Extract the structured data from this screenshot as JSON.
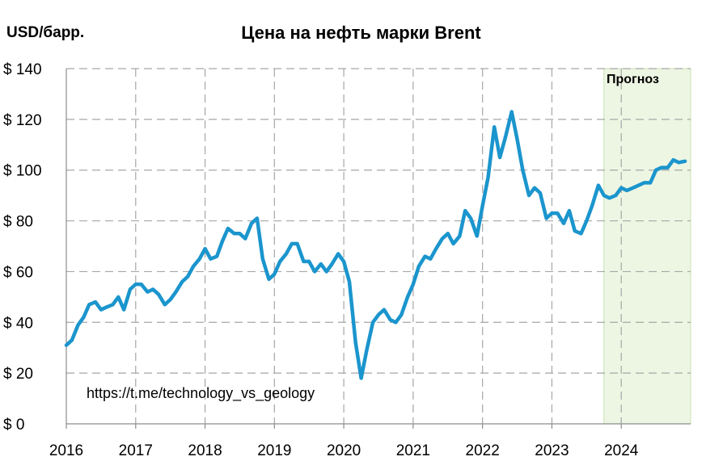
{
  "chart_data": {
    "type": "line",
    "title": "Цена на нефть марки Brent",
    "ylabel": "USD/барр.",
    "xlabel": "",
    "ylim": [
      0,
      140
    ],
    "xlim": [
      2016,
      2025
    ],
    "yticks": [
      {
        "value": 0,
        "label": "$ 0"
      },
      {
        "value": 20,
        "label": "$ 20"
      },
      {
        "value": 40,
        "label": "$ 40"
      },
      {
        "value": 60,
        "label": "$ 60"
      },
      {
        "value": 80,
        "label": "$ 80"
      },
      {
        "value": 100,
        "label": "$ 100"
      },
      {
        "value": 120,
        "label": "$ 120"
      },
      {
        "value": 140,
        "label": "$ 140"
      }
    ],
    "xticks": [
      {
        "value": 2016,
        "label": "2016"
      },
      {
        "value": 2017,
        "label": "2017"
      },
      {
        "value": 2018,
        "label": "2018"
      },
      {
        "value": 2019,
        "label": "2019"
      },
      {
        "value": 2020,
        "label": "2020"
      },
      {
        "value": 2021,
        "label": "2021"
      },
      {
        "value": 2022,
        "label": "2022"
      },
      {
        "value": 2023,
        "label": "2023"
      },
      {
        "value": 2024,
        "label": "2024"
      }
    ],
    "grid": true,
    "forecast_region": {
      "label": "Прогноз",
      "x_start": 2023.75,
      "x_end": 2025,
      "color": "#edf6e3"
    },
    "line_color": "#1b95cd",
    "series": [
      {
        "name": "",
        "points": [
          [
            2016.0,
            31
          ],
          [
            2016.08,
            33
          ],
          [
            2016.17,
            39
          ],
          [
            2016.25,
            42
          ],
          [
            2016.33,
            47
          ],
          [
            2016.42,
            48
          ],
          [
            2016.5,
            45
          ],
          [
            2016.58,
            46
          ],
          [
            2016.67,
            47
          ],
          [
            2016.75,
            50
          ],
          [
            2016.83,
            45
          ],
          [
            2016.92,
            53
          ],
          [
            2017.0,
            55
          ],
          [
            2017.08,
            55
          ],
          [
            2017.17,
            52
          ],
          [
            2017.25,
            53
          ],
          [
            2017.33,
            51
          ],
          [
            2017.42,
            47
          ],
          [
            2017.5,
            49
          ],
          [
            2017.58,
            52
          ],
          [
            2017.67,
            56
          ],
          [
            2017.75,
            58
          ],
          [
            2017.83,
            62
          ],
          [
            2017.92,
            65
          ],
          [
            2018.0,
            69
          ],
          [
            2018.08,
            65
          ],
          [
            2018.17,
            66
          ],
          [
            2018.25,
            72
          ],
          [
            2018.33,
            77
          ],
          [
            2018.42,
            75
          ],
          [
            2018.5,
            75
          ],
          [
            2018.58,
            73
          ],
          [
            2018.67,
            79
          ],
          [
            2018.75,
            81
          ],
          [
            2018.83,
            65
          ],
          [
            2018.92,
            57
          ],
          [
            2019.0,
            59
          ],
          [
            2019.08,
            64
          ],
          [
            2019.17,
            67
          ],
          [
            2019.25,
            71
          ],
          [
            2019.33,
            71
          ],
          [
            2019.42,
            64
          ],
          [
            2019.5,
            64
          ],
          [
            2019.58,
            60
          ],
          [
            2019.67,
            63
          ],
          [
            2019.75,
            60
          ],
          [
            2019.83,
            63
          ],
          [
            2019.92,
            67
          ],
          [
            2020.0,
            64
          ],
          [
            2020.08,
            56
          ],
          [
            2020.17,
            32
          ],
          [
            2020.25,
            18
          ],
          [
            2020.33,
            29
          ],
          [
            2020.42,
            40
          ],
          [
            2020.5,
            43
          ],
          [
            2020.58,
            45
          ],
          [
            2020.67,
            41
          ],
          [
            2020.75,
            40
          ],
          [
            2020.83,
            43
          ],
          [
            2020.92,
            50
          ],
          [
            2021.0,
            55
          ],
          [
            2021.08,
            62
          ],
          [
            2021.17,
            66
          ],
          [
            2021.25,
            65
          ],
          [
            2021.33,
            69
          ],
          [
            2021.42,
            73
          ],
          [
            2021.5,
            75
          ],
          [
            2021.58,
            71
          ],
          [
            2021.67,
            74
          ],
          [
            2021.75,
            84
          ],
          [
            2021.83,
            81
          ],
          [
            2021.92,
            74
          ],
          [
            2022.0,
            86
          ],
          [
            2022.08,
            97
          ],
          [
            2022.17,
            117
          ],
          [
            2022.25,
            105
          ],
          [
            2022.33,
            113
          ],
          [
            2022.42,
            123
          ],
          [
            2022.5,
            112
          ],
          [
            2022.58,
            100
          ],
          [
            2022.67,
            90
          ],
          [
            2022.75,
            93
          ],
          [
            2022.83,
            91
          ],
          [
            2022.92,
            81
          ],
          [
            2023.0,
            83
          ],
          [
            2023.08,
            83
          ],
          [
            2023.17,
            79
          ],
          [
            2023.25,
            84
          ],
          [
            2023.33,
            76
          ],
          [
            2023.42,
            75
          ],
          [
            2023.5,
            80
          ],
          [
            2023.58,
            86
          ],
          [
            2023.67,
            94
          ],
          [
            2023.75,
            90
          ],
          [
            2023.83,
            89
          ],
          [
            2023.92,
            90
          ],
          [
            2024.0,
            93
          ],
          [
            2024.08,
            92
          ],
          [
            2024.17,
            93
          ],
          [
            2024.25,
            94
          ],
          [
            2024.33,
            95
          ],
          [
            2024.42,
            95
          ],
          [
            2024.5,
            100
          ],
          [
            2024.58,
            101
          ],
          [
            2024.67,
            101
          ],
          [
            2024.75,
            104
          ],
          [
            2024.83,
            103
          ],
          [
            2024.92,
            103.5
          ]
        ]
      }
    ]
  },
  "header": {
    "unit_label": "USD/барр.",
    "title": "Цена на нефть марки Brent"
  },
  "forecast": {
    "label": "Прогноз"
  },
  "source": {
    "text": "https://t.me/technology_vs_geology"
  }
}
